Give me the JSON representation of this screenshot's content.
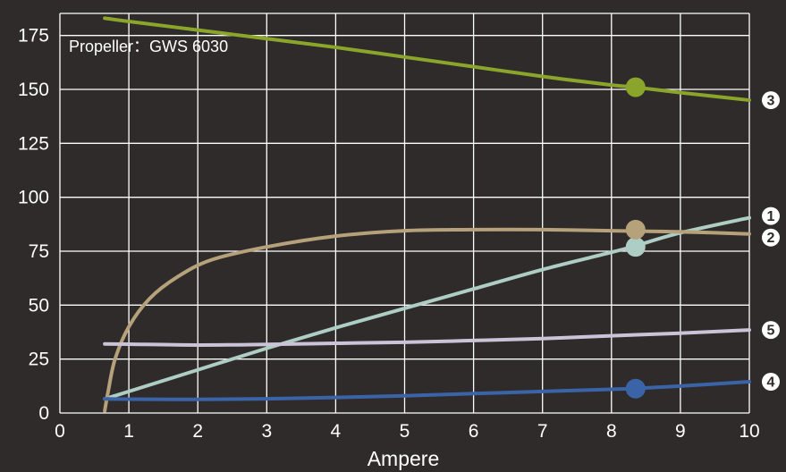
{
  "chart_data": {
    "type": "line",
    "title": "",
    "xlabel": "Ampere",
    "ylabel": "",
    "xlim": [
      0,
      10
    ],
    "ylim": [
      0,
      180
    ],
    "x_ticks": [
      0,
      1,
      2,
      3,
      4,
      5,
      6,
      7,
      8,
      9,
      10
    ],
    "y_ticks": [
      0,
      25,
      50,
      75,
      100,
      125,
      150,
      175
    ],
    "grid": true,
    "annotation": "Propeller：GWS 6030",
    "series": [
      {
        "name": "1",
        "color": "#aecdc4",
        "x": [
          0.65,
          1,
          2,
          3,
          4,
          5,
          6,
          7,
          8,
          8.35,
          9,
          10
        ],
        "y": [
          6.5,
          10,
          20,
          30,
          39.5,
          48.5,
          57.5,
          66.5,
          74.5,
          77.5,
          83.5,
          90.5
        ],
        "marker": {
          "x": 8.35,
          "y": 77
        }
      },
      {
        "name": "2",
        "color": "#b5a17a",
        "x": [
          0.65,
          0.7,
          0.8,
          1,
          1.3,
          1.7,
          2.2,
          3,
          4,
          5,
          6,
          7,
          8,
          8.35,
          9,
          10
        ],
        "y": [
          1,
          10,
          25,
          40,
          53,
          63,
          71,
          77,
          82,
          84.5,
          85,
          85,
          84.5,
          84.3,
          84,
          83
        ],
        "marker": {
          "x": 8.35,
          "y": 85
        }
      },
      {
        "name": "3",
        "color": "#8aa52a",
        "x": [
          0.65,
          1,
          2,
          3,
          4,
          5,
          6,
          7,
          8,
          8.35,
          9,
          10
        ],
        "y": [
          183,
          181.5,
          177.5,
          173.5,
          169.5,
          165,
          160.5,
          156,
          152,
          151,
          148.5,
          145
        ],
        "marker": {
          "x": 8.35,
          "y": 151
        }
      },
      {
        "name": "4",
        "color": "#3b64a8",
        "x": [
          0.65,
          1,
          2,
          3,
          4,
          5,
          6,
          7,
          8,
          8.35,
          9,
          10
        ],
        "y": [
          6.5,
          6.4,
          6.3,
          6.6,
          7.2,
          8,
          9,
          10,
          11,
          11.4,
          12.5,
          14.5
        ],
        "marker": {
          "x": 8.35,
          "y": 11.3
        }
      },
      {
        "name": "5",
        "color": "#cbc3d8",
        "x": [
          0.65,
          1,
          2,
          3,
          4,
          5,
          6,
          7,
          8,
          9,
          10
        ],
        "y": [
          32,
          31.9,
          31.5,
          31.8,
          32.3,
          32.8,
          33.6,
          34.5,
          35.8,
          37,
          38.5
        ],
        "marker": null
      }
    ]
  }
}
